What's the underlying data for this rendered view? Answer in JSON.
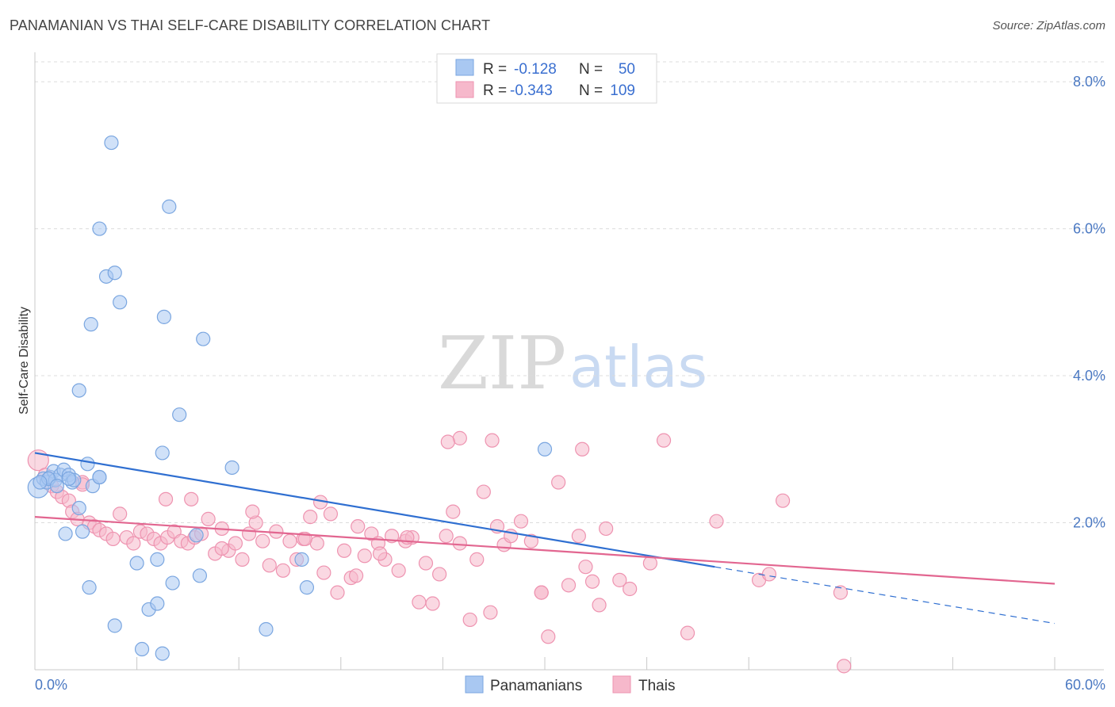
{
  "title": "PANAMANIAN VS THAI SELF-CARE DISABILITY CORRELATION CHART",
  "source": "Source: ZipAtlas.com",
  "watermark": {
    "zip": "ZIP",
    "atlas": "atlas"
  },
  "colors": {
    "panamanian_fill": "#a9c8f2",
    "panamanian_stroke": "#7aa6e0",
    "panamanian_line": "#2f6fd1",
    "thai_fill": "#f6b8cb",
    "thai_stroke": "#ee93b0",
    "thai_line": "#e26690",
    "axis_text": "#4a78c2"
  },
  "legend": {
    "rows": [
      {
        "r_label": "R =",
        "r_value": "-0.128",
        "n_label": "N =",
        "n_value": "50"
      },
      {
        "r_label": "R =",
        "r_value": "-0.343",
        "n_label": "N =",
        "n_value": "109"
      }
    ]
  },
  "chart_data": {
    "type": "scatter",
    "title": "PANAMANIAN VS THAI SELF-CARE DISABILITY CORRELATION CHART",
    "xlabel": "",
    "ylabel": "Self-Care Disability",
    "xlim": [
      0,
      60
    ],
    "ylim": [
      0,
      8.4
    ],
    "x_tick_labels": [
      "0.0%",
      "60.0%"
    ],
    "y_ticks": [
      2,
      4,
      6,
      8
    ],
    "y_tick_labels": [
      "2.0%",
      "4.0%",
      "6.0%",
      "8.0%"
    ],
    "grid": true,
    "legend_position": "top-center",
    "series": [
      {
        "name": "Panamanians",
        "r": -0.128,
        "n": 50,
        "trend": {
          "x0": 0,
          "y0": 2.95,
          "x1": 40,
          "y1": 1.4,
          "dash_to_x": 60,
          "dash_to_y": 0.63
        },
        "points": [
          [
            0.2,
            2.48
          ],
          [
            0.5,
            2.6
          ],
          [
            0.7,
            2.55
          ],
          [
            0.9,
            2.62
          ],
          [
            1.1,
            2.7
          ],
          [
            1.2,
            2.58
          ],
          [
            1.5,
            2.65
          ],
          [
            1.7,
            2.72
          ],
          [
            2.0,
            2.65
          ],
          [
            2.2,
            2.55
          ],
          [
            2.3,
            2.58
          ],
          [
            2.6,
            2.2
          ],
          [
            2.8,
            1.88
          ],
          [
            3.1,
            2.8
          ],
          [
            3.4,
            2.5
          ],
          [
            3.8,
            2.62
          ],
          [
            4.2,
            5.35
          ],
          [
            4.5,
            7.17
          ],
          [
            4.7,
            5.4
          ],
          [
            5.0,
            5.0
          ],
          [
            3.8,
            6.0
          ],
          [
            3.3,
            4.7
          ],
          [
            2.6,
            3.8
          ],
          [
            7.9,
            6.3
          ],
          [
            7.6,
            4.8
          ],
          [
            9.9,
            4.5
          ],
          [
            8.5,
            3.47
          ],
          [
            7.5,
            2.95
          ],
          [
            11.6,
            2.75
          ],
          [
            30.0,
            3.0
          ],
          [
            3.2,
            1.12
          ],
          [
            4.7,
            0.6
          ],
          [
            6.0,
            1.45
          ],
          [
            6.7,
            0.82
          ],
          [
            7.2,
            0.9
          ],
          [
            6.3,
            0.28
          ],
          [
            7.5,
            0.22
          ],
          [
            8.1,
            1.18
          ],
          [
            9.7,
            1.28
          ],
          [
            9.5,
            1.83
          ],
          [
            13.6,
            0.55
          ],
          [
            16.0,
            1.12
          ],
          [
            15.7,
            1.5
          ],
          [
            7.2,
            1.5
          ],
          [
            1.8,
            1.85
          ],
          [
            0.8,
            2.6
          ],
          [
            1.3,
            2.5
          ],
          [
            2.0,
            2.6
          ],
          [
            3.8,
            2.62
          ],
          [
            0.3,
            2.55
          ]
        ]
      },
      {
        "name": "Thais",
        "r": -0.343,
        "n": 109,
        "trend": {
          "x0": 0,
          "y0": 2.08,
          "x1": 60,
          "y1": 1.17
        },
        "points": [
          [
            0.2,
            2.85
          ],
          [
            0.6,
            2.65
          ],
          [
            1.0,
            2.5
          ],
          [
            1.3,
            2.42
          ],
          [
            1.6,
            2.35
          ],
          [
            2.0,
            2.3
          ],
          [
            2.2,
            2.15
          ],
          [
            2.5,
            2.05
          ],
          [
            2.8,
            2.55
          ],
          [
            3.2,
            2.0
          ],
          [
            3.5,
            1.95
          ],
          [
            3.8,
            1.9
          ],
          [
            4.2,
            1.85
          ],
          [
            4.6,
            1.78
          ],
          [
            5.0,
            2.12
          ],
          [
            5.4,
            1.8
          ],
          [
            5.8,
            1.72
          ],
          [
            6.2,
            1.88
          ],
          [
            6.6,
            1.85
          ],
          [
            7.0,
            1.78
          ],
          [
            7.4,
            1.72
          ],
          [
            7.8,
            1.8
          ],
          [
            8.2,
            1.88
          ],
          [
            8.6,
            1.75
          ],
          [
            9.0,
            1.72
          ],
          [
            9.4,
            1.8
          ],
          [
            9.8,
            1.85
          ],
          [
            10.2,
            2.05
          ],
          [
            10.6,
            1.58
          ],
          [
            11.0,
            1.92
          ],
          [
            11.4,
            1.62
          ],
          [
            11.8,
            1.72
          ],
          [
            12.2,
            1.5
          ],
          [
            12.6,
            1.85
          ],
          [
            13.0,
            2.0
          ],
          [
            13.4,
            1.75
          ],
          [
            13.8,
            1.42
          ],
          [
            14.2,
            1.88
          ],
          [
            14.6,
            1.35
          ],
          [
            15.0,
            1.75
          ],
          [
            15.4,
            1.5
          ],
          [
            15.8,
            1.78
          ],
          [
            16.2,
            2.08
          ],
          [
            16.6,
            1.72
          ],
          [
            17.0,
            1.32
          ],
          [
            17.4,
            2.12
          ],
          [
            17.8,
            1.05
          ],
          [
            18.2,
            1.62
          ],
          [
            18.6,
            1.25
          ],
          [
            19.0,
            1.95
          ],
          [
            19.4,
            1.55
          ],
          [
            19.8,
            1.85
          ],
          [
            20.2,
            1.72
          ],
          [
            20.6,
            1.5
          ],
          [
            21.0,
            1.82
          ],
          [
            21.4,
            1.35
          ],
          [
            21.8,
            1.75
          ],
          [
            22.2,
            1.8
          ],
          [
            22.6,
            0.92
          ],
          [
            23.0,
            1.45
          ],
          [
            23.4,
            0.9
          ],
          [
            23.8,
            1.3
          ],
          [
            24.2,
            1.82
          ],
          [
            24.6,
            2.15
          ],
          [
            25.0,
            1.72
          ],
          [
            25.6,
            0.68
          ],
          [
            26.0,
            1.5
          ],
          [
            26.4,
            2.42
          ],
          [
            26.8,
            0.78
          ],
          [
            27.2,
            1.95
          ],
          [
            27.6,
            1.7
          ],
          [
            28.0,
            1.82
          ],
          [
            28.6,
            2.02
          ],
          [
            29.2,
            1.75
          ],
          [
            29.8,
            1.05
          ],
          [
            30.2,
            0.45
          ],
          [
            30.8,
            2.55
          ],
          [
            31.4,
            1.15
          ],
          [
            32.0,
            1.82
          ],
          [
            32.4,
            1.4
          ],
          [
            32.8,
            1.2
          ],
          [
            33.2,
            0.88
          ],
          [
            33.6,
            1.92
          ],
          [
            34.4,
            1.22
          ],
          [
            35.0,
            1.1
          ],
          [
            36.2,
            1.45
          ],
          [
            37.0,
            3.12
          ],
          [
            38.4,
            0.5
          ],
          [
            40.1,
            2.02
          ],
          [
            42.6,
            1.22
          ],
          [
            43.2,
            1.3
          ],
          [
            44.0,
            2.3
          ],
          [
            47.4,
            1.05
          ],
          [
            47.6,
            0.05
          ],
          [
            25.0,
            3.15
          ],
          [
            26.9,
            3.12
          ],
          [
            29.8,
            1.05
          ],
          [
            32.2,
            3.0
          ],
          [
            24.3,
            3.1
          ],
          [
            20.3,
            1.58
          ],
          [
            18.9,
            1.28
          ],
          [
            21.9,
            1.8
          ],
          [
            16.8,
            2.28
          ],
          [
            15.9,
            1.78
          ],
          [
            12.8,
            2.15
          ],
          [
            11.0,
            1.65
          ],
          [
            9.2,
            2.32
          ],
          [
            7.7,
            2.32
          ],
          [
            2.8,
            2.52
          ]
        ]
      }
    ]
  }
}
